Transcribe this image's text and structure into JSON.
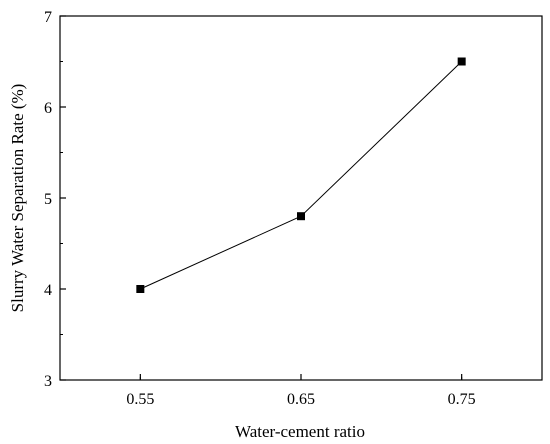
{
  "chart_data": {
    "type": "line",
    "title": "",
    "xlabel": "Water-cement ratio",
    "ylabel": "Slurry Water Separation Rate (%)",
    "x": [
      0.55,
      0.65,
      0.75
    ],
    "x_tick_labels": [
      "0.55",
      "0.65",
      "0.75"
    ],
    "series": [
      {
        "values": [
          4.0,
          4.8,
          6.5
        ],
        "marker": "square",
        "color": "#000000"
      }
    ],
    "xlim": [
      0.5,
      0.8
    ],
    "ylim": [
      3,
      7
    ],
    "y_ticks": [
      3,
      4,
      5,
      6,
      7
    ],
    "y_tick_labels": [
      "3",
      "4",
      "5",
      "6",
      "7"
    ],
    "grid": false,
    "legend": "none"
  }
}
